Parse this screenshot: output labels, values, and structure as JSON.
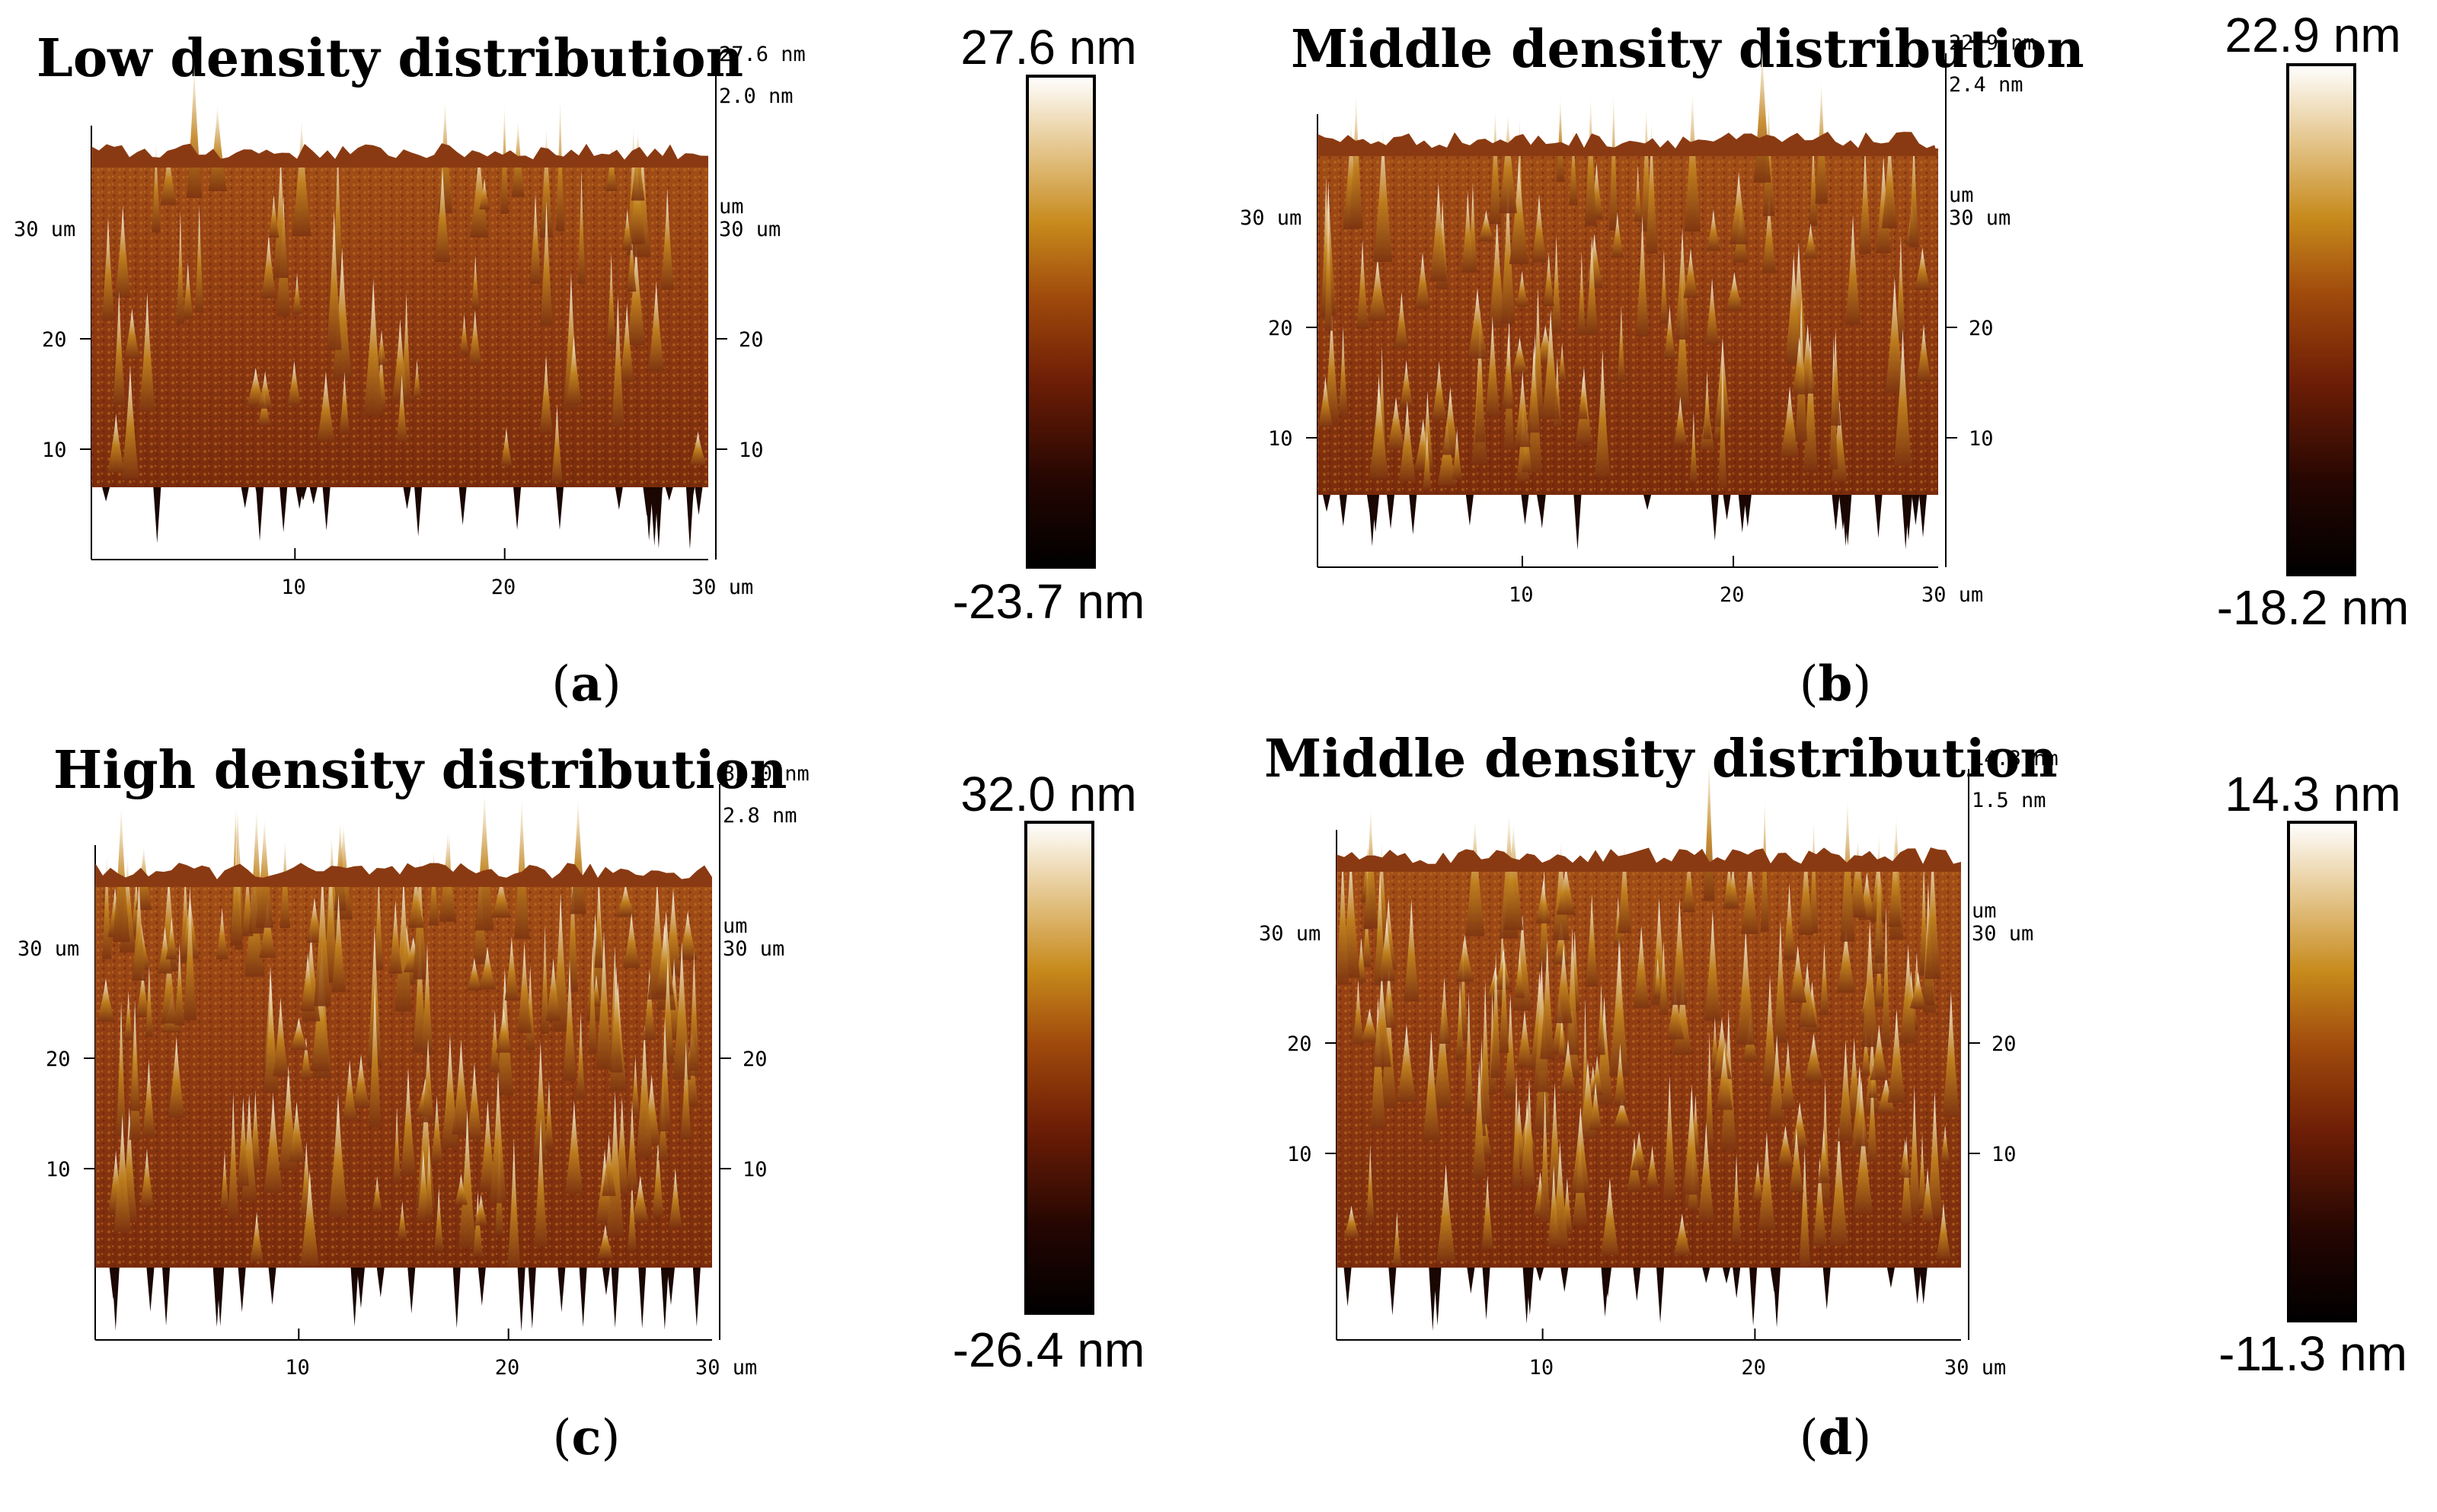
{
  "figure": {
    "panels": [
      {
        "id": "a",
        "title": "Low density distribution",
        "label_letter": "a",
        "z_max": "27.6 nm",
        "z_tick": "2.0 nm",
        "z_unit": "um",
        "y_top": "30 um",
        "y_tick_right_top": "30 um",
        "y_ticks": [
          "20",
          "10"
        ],
        "x_ticks": [
          "10",
          "20"
        ],
        "x_end": "30 um",
        "scale_max": "27.6 nm",
        "scale_min": "-23.7 nm",
        "peak_density": "low"
      },
      {
        "id": "b",
        "title": "Middle density distribution",
        "label_letter": "b",
        "z_max": "22.9 nm",
        "z_tick": "2.4 nm",
        "z_unit": "um",
        "y_top": "30 um",
        "y_tick_right_top": "30 um",
        "y_ticks": [
          "20",
          "10"
        ],
        "x_ticks": [
          "10",
          "20"
        ],
        "x_end": "30 um",
        "scale_max": "22.9 nm",
        "scale_min": "-18.2 nm",
        "peak_density": "middle"
      },
      {
        "id": "c",
        "title": "High density distribution",
        "label_letter": "c",
        "z_max": "32.0 nm",
        "z_tick": "2.8 nm",
        "z_unit": "um",
        "y_top": "30 um",
        "y_tick_right_top": "30 um",
        "y_ticks": [
          "20",
          "10"
        ],
        "x_ticks": [
          "10",
          "20"
        ],
        "x_end": "30 um",
        "scale_max": "32.0 nm",
        "scale_min": "-26.4 nm",
        "peak_density": "high"
      },
      {
        "id": "d",
        "title": "Middle density distribution",
        "label_letter": "d",
        "z_max": "14.3 nm",
        "z_tick": "1.5 nm",
        "z_unit": "um",
        "y_top": "30 um",
        "y_tick_right_top": "30 um",
        "y_ticks": [
          "20",
          "10"
        ],
        "x_ticks": [
          "10",
          "20"
        ],
        "x_end": "30 um",
        "scale_max": "14.3 nm",
        "scale_min": "-11.3 nm",
        "peak_density": "middle-dense"
      }
    ],
    "colors": {
      "colormap": [
        "#000000",
        "#3a0b02",
        "#7a2a0a",
        "#a3520f",
        "#c98a1d",
        "#e8c88a",
        "#ffffff"
      ],
      "surface_base": "#9a4416",
      "surface_dark": "#5a1e08"
    }
  }
}
